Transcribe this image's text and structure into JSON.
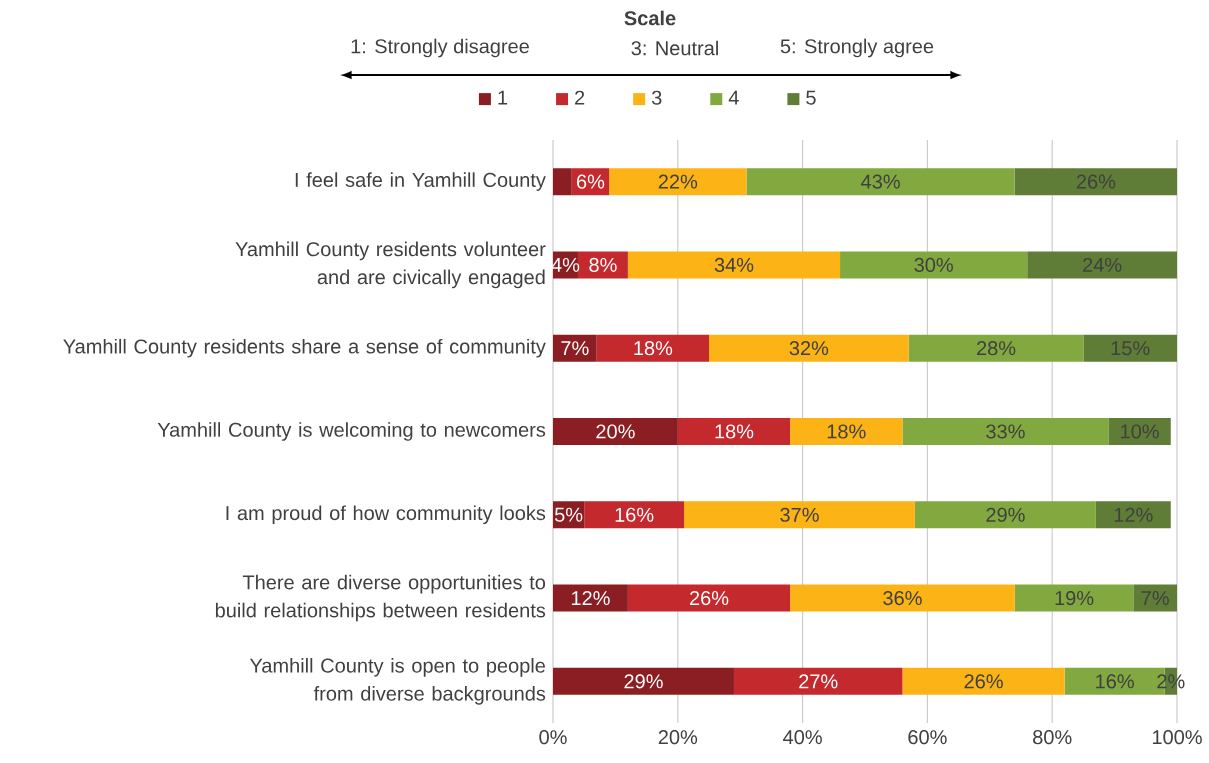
{
  "chart_data": {
    "type": "bar",
    "orientation": "horizontal",
    "stacked": true,
    "title": "Scale",
    "annotations": [
      "1: Strongly disagree",
      "3: Neutral",
      "5: Strongly agree"
    ],
    "categories": [
      "I feel safe in Yamhill County",
      "Yamhill County residents volunteer and are civically engaged",
      "Yamhill County residents share a sense of community",
      "Yamhill County is welcoming to newcomers",
      "I am proud of how community looks",
      "There are diverse opportunities to build relationships between residents",
      "Yamhill County is open to people from diverse backgrounds"
    ],
    "series": [
      {
        "name": "1",
        "color": "#8b1e22",
        "values": [
          3,
          4,
          7,
          20,
          5,
          12,
          29
        ],
        "value_labels": [
          null,
          "4%",
          "7%",
          "20%",
          "5%",
          "12%",
          "29%"
        ]
      },
      {
        "name": "2",
        "color": "#c4292e",
        "values": [
          6,
          8,
          18,
          18,
          16,
          26,
          27
        ],
        "value_labels": [
          "6%",
          "8%",
          "18%",
          "18%",
          "16%",
          "26%",
          "27%"
        ]
      },
      {
        "name": "3",
        "color": "#fbb316",
        "values": [
          22,
          34,
          32,
          18,
          37,
          36,
          26
        ],
        "value_labels": [
          "22%",
          "34%",
          "32%",
          "18%",
          "37%",
          "36%",
          "26%"
        ]
      },
      {
        "name": "4",
        "color": "#82a93f",
        "values": [
          43,
          30,
          28,
          33,
          29,
          19,
          16
        ],
        "value_labels": [
          "43%",
          "30%",
          "28%",
          "33%",
          "29%",
          "19%",
          "16%"
        ]
      },
      {
        "name": "5",
        "color": "#5f7d36",
        "values": [
          26,
          24,
          15,
          10,
          12,
          7,
          2
        ],
        "value_labels": [
          "26%",
          "24%",
          "15%",
          "10%",
          "12%",
          "7%",
          "2%"
        ]
      }
    ],
    "xlim": [
      0,
      100
    ],
    "xticks": [
      {
        "value": 0,
        "label": "0%"
      },
      {
        "value": 20,
        "label": "20%"
      },
      {
        "value": 40,
        "label": "40%"
      },
      {
        "value": 60,
        "label": "60%"
      },
      {
        "value": 80,
        "label": "80%"
      },
      {
        "value": 100,
        "label": "100%"
      }
    ],
    "grid": "x",
    "legend": "top"
  }
}
